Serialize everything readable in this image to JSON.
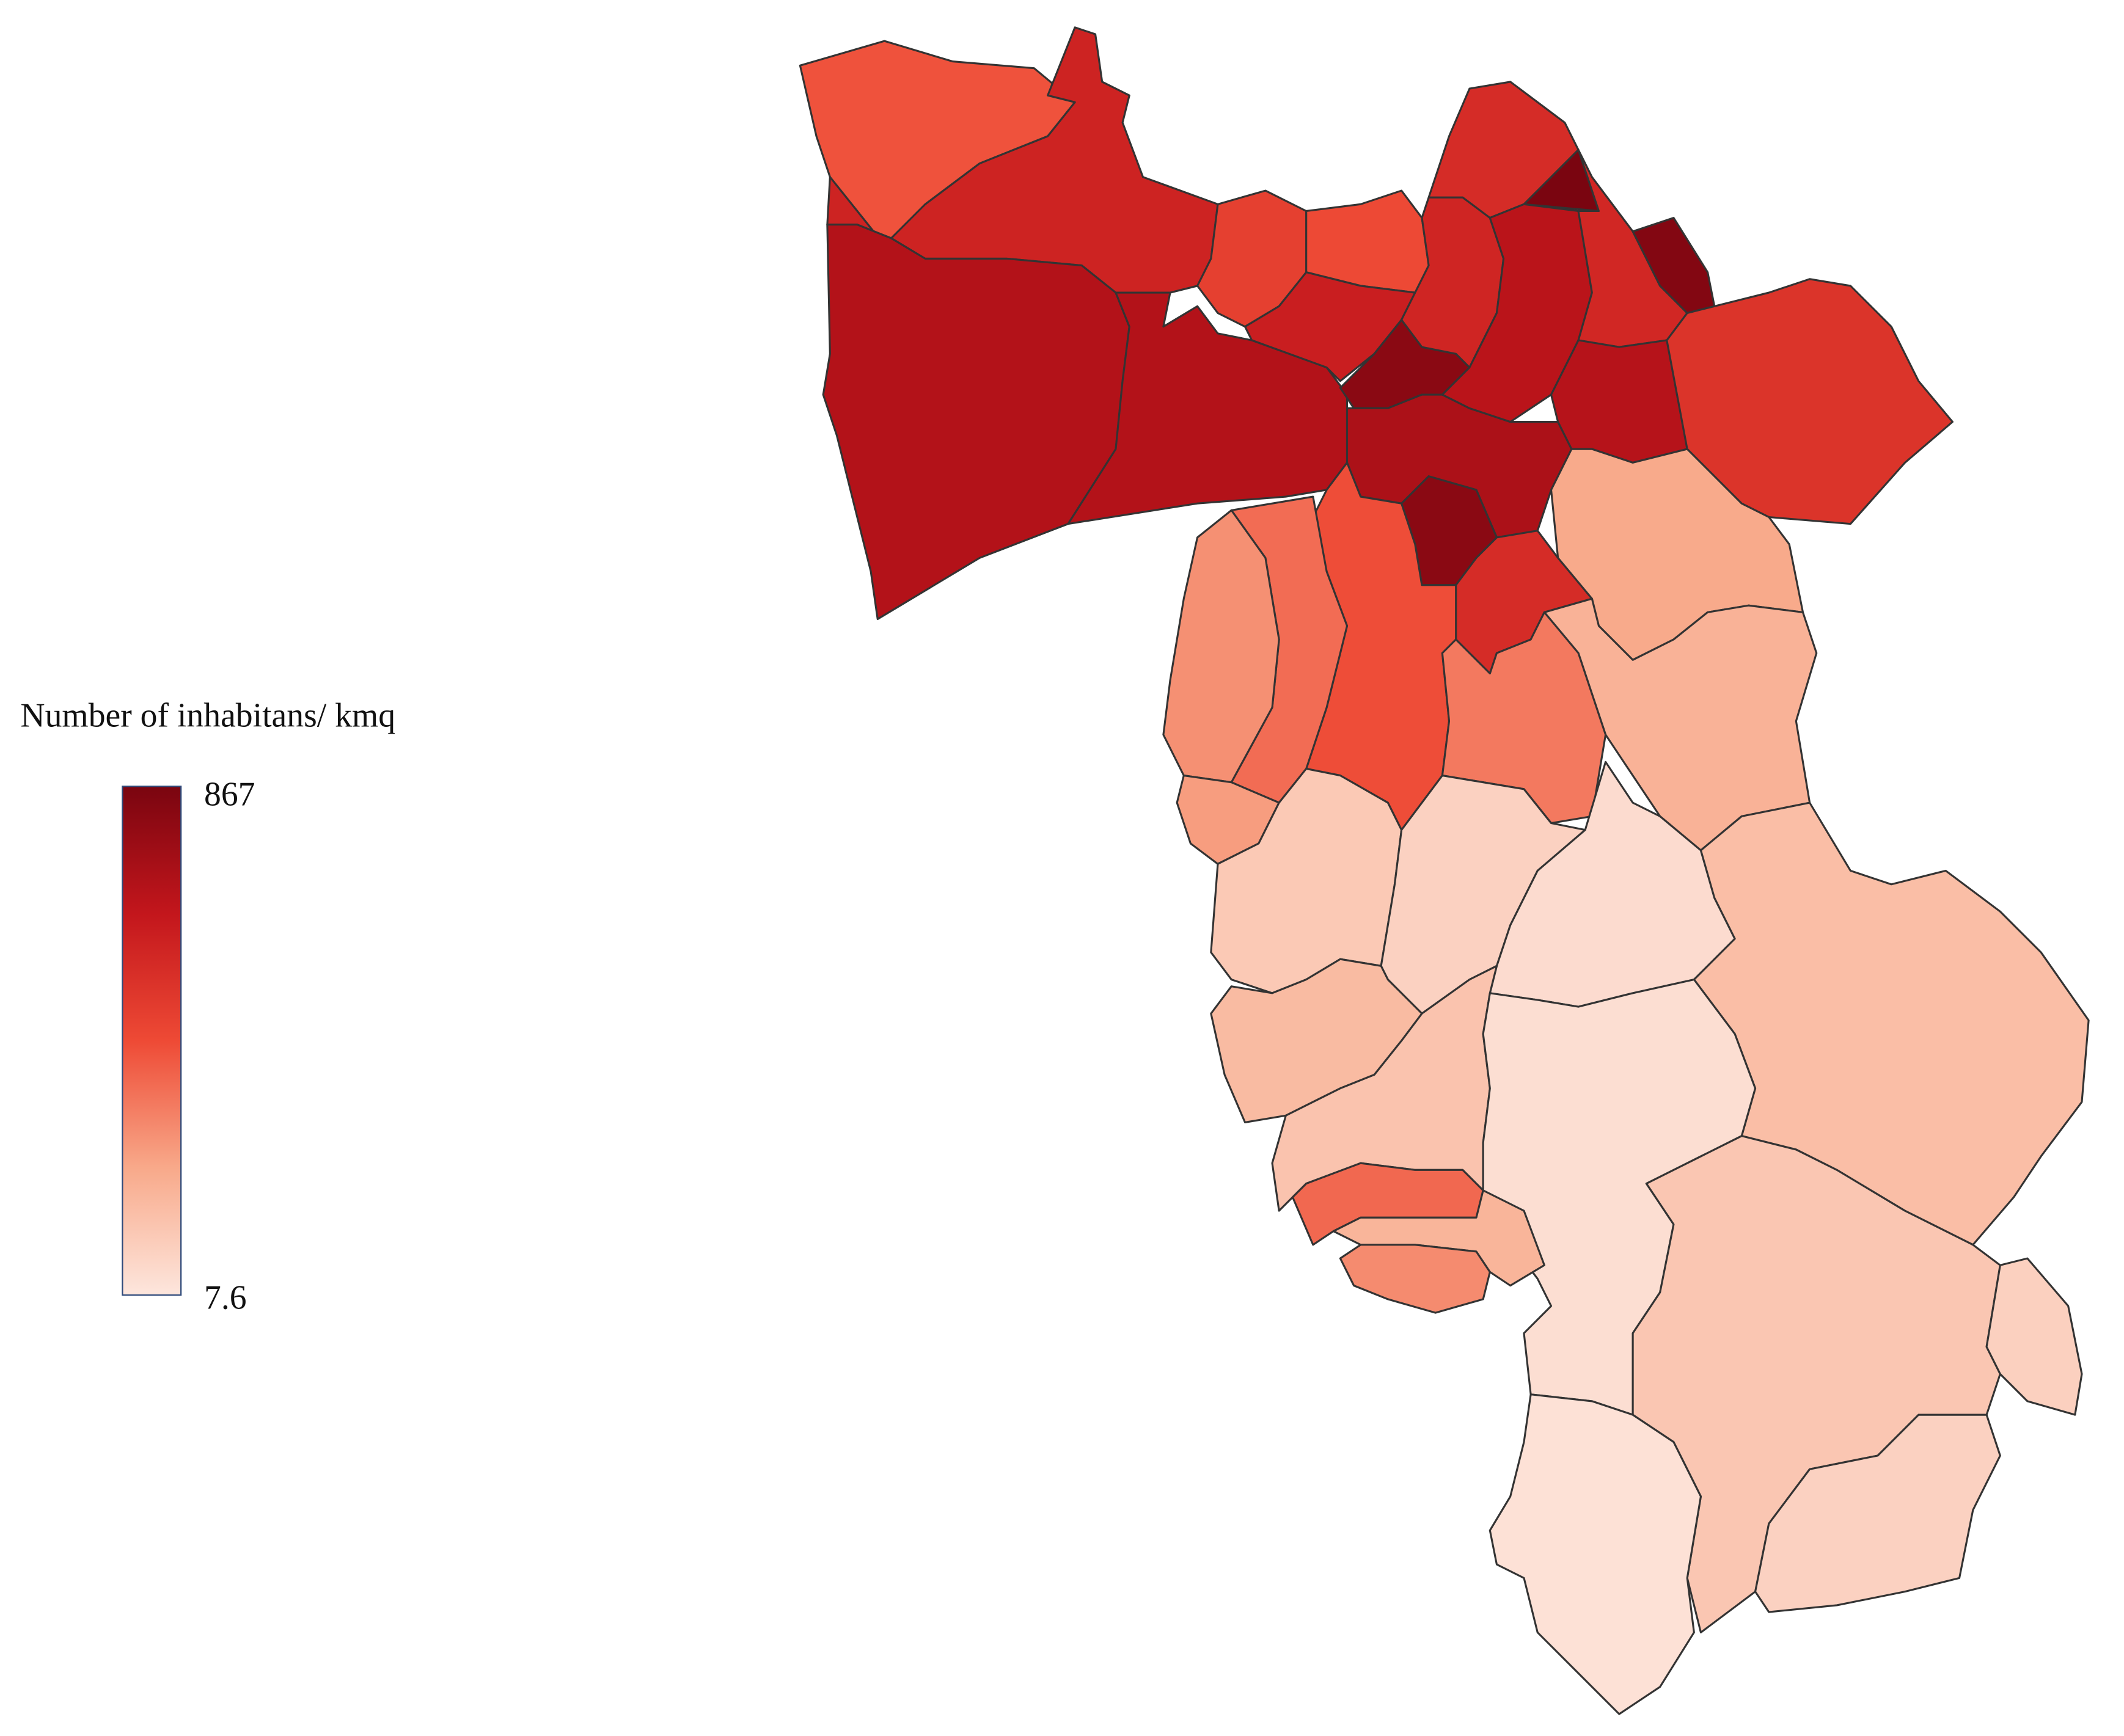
{
  "chart_data": {
    "type": "choropleth",
    "legend_title": "Number of inhabitans/ kmq",
    "vmin": 7.6,
    "vmax": 867,
    "colorscale": [
      "#fde6dd",
      "#f8a98a",
      "#ee4a35",
      "#c3161c",
      "#7a0510"
    ],
    "values": [
      420,
      600,
      700,
      700,
      480,
      440,
      620,
      820,
      720,
      820,
      590,
      560,
      867,
      680,
      580,
      840,
      690,
      530,
      560,
      220,
      190,
      430,
      330,
      360,
      280,
      250,
      110,
      80,
      45,
      150,
      160,
      130,
      35,
      370,
      180,
      290,
      120,
      85,
      80,
      25
    ]
  }
}
